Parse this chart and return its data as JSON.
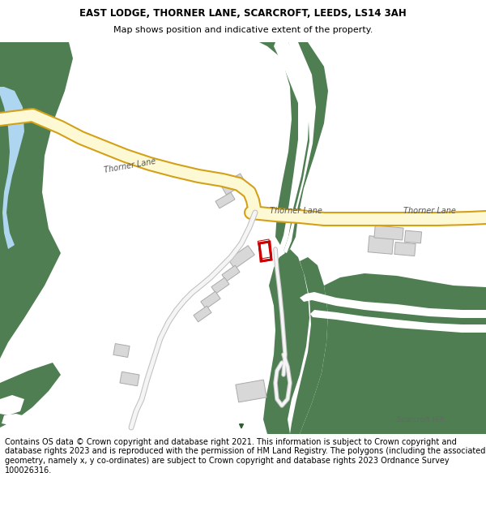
{
  "title": "EAST LODGE, THORNER LANE, SCARCROFT, LEEDS, LS14 3AH",
  "subtitle": "Map shows position and indicative extent of the property.",
  "footer": "Contains OS data © Crown copyright and database right 2021. This information is subject to Crown copyright and database rights 2023 and is reproduced with the permission of HM Land Registry. The polygons (including the associated geometry, namely x, y co-ordinates) are subject to Crown copyright and database rights 2023 Ordnance Survey 100026316.",
  "title_fontsize": 8.5,
  "subtitle_fontsize": 8,
  "footer_fontsize": 7,
  "bg_color": "#ffffff",
  "map_bg": "#ffffff",
  "green_dark": "#4e7e52",
  "road_fill": "#fef9d5",
  "road_border": "#d4a017",
  "water_color": "#aed6f1",
  "building_color": "#d3d3d3",
  "building_edge": "#b0b0b0",
  "plot_color": "#cc0000",
  "white_line": "#ffffff"
}
